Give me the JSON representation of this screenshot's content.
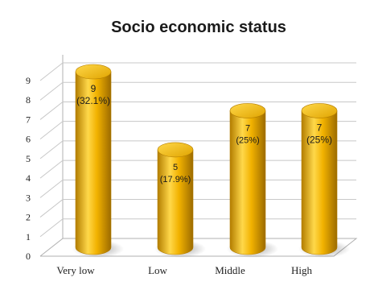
{
  "chart_data": {
    "type": "bar",
    "title": "Socio economic status",
    "categories": [
      "Very low",
      "Low",
      "Middle",
      "High"
    ],
    "values": [
      9,
      5,
      7,
      7
    ],
    "data_labels": [
      {
        "value": "9",
        "percent": "(32.1%)"
      },
      {
        "value": "5",
        "percent": "(17.9%)"
      },
      {
        "value": "7",
        "percent": "(25%)"
      },
      {
        "value": "7",
        "percent": "(25%)"
      }
    ],
    "y_ticks": [
      "0",
      "1",
      "2",
      "3",
      "4",
      "5",
      "6",
      "7",
      "8",
      "9"
    ],
    "ylim": [
      0,
      9
    ],
    "xlabel": "",
    "ylabel": "",
    "grid": true,
    "legend": "none",
    "style": "3d-cylinder",
    "bar_color": "#f2b200",
    "bar_color_dark": "#b37d00",
    "bar_color_light": "#ffd84a"
  }
}
